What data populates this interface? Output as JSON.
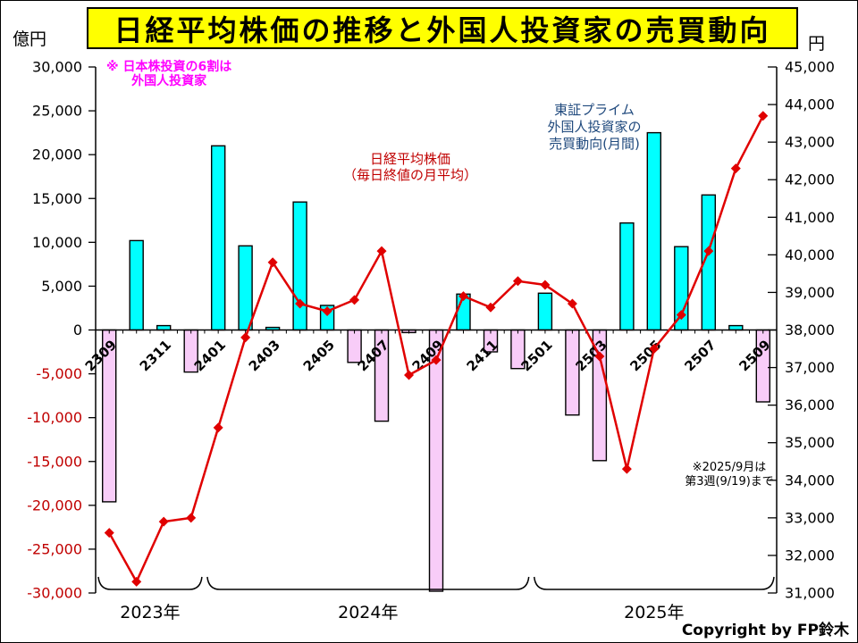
{
  "header": {
    "title": "日経平均株価の推移と外国人投資家の売買動向",
    "left_unit": "億円",
    "right_unit": "円"
  },
  "annotations": {
    "domestic_note": {
      "line1": "※ 日本株投資の6割は",
      "line2": "外国人投資家"
    },
    "nikkei_label": {
      "line1": "日経平均株価",
      "line2": "（毎日終値の月平均）"
    },
    "foreign_label": {
      "line1": "東証プライム",
      "line2": "外国人投資家の",
      "line3": "売買動向(月間)"
    },
    "data_note": {
      "line1": "※2025/9月は",
      "line2": "第3週(9/19)まで"
    }
  },
  "footer": {
    "copyright": "Copyright by FP鈴木"
  },
  "chart_data": {
    "type": "bar+line combo",
    "categories": [
      "2309",
      "2310",
      "2311",
      "2312",
      "2401",
      "2402",
      "2403",
      "2404",
      "2405",
      "2406",
      "2407",
      "2408",
      "2409",
      "2410",
      "2411",
      "2412",
      "2501",
      "2502",
      "2503",
      "2504",
      "2505",
      "2506",
      "2507",
      "2508",
      "2509"
    ],
    "series": [
      {
        "name": "東証プライム外国人投資家の売買動向(月間)",
        "type": "bar",
        "axis": "left",
        "unit": "億円",
        "values": [
          -19600,
          10200,
          500,
          -4800,
          21000,
          9600,
          300,
          14600,
          2800,
          -3700,
          -10400,
          -300,
          -29800,
          4100,
          -2500,
          -4400,
          4200,
          -9700,
          -14900,
          12200,
          22500,
          9500,
          15400,
          500,
          -8200
        ]
      },
      {
        "name": "日経平均株価（毎日終値の月平均）",
        "type": "line",
        "axis": "right",
        "unit": "円",
        "values": [
          32600,
          31300,
          32900,
          33000,
          35400,
          37800,
          39800,
          38700,
          38500,
          38800,
          40100,
          36800,
          37200,
          38900,
          38600,
          39300,
          39200,
          38700,
          37300,
          34300,
          37500,
          38400,
          40100,
          42300,
          43700
        ]
      }
    ],
    "left_axis": {
      "label": "億円",
      "min": -30000,
      "max": 30000,
      "step": 5000,
      "ticks": [
        "30,000",
        "25,000",
        "20,000",
        "15,000",
        "10,000",
        "5,000",
        "0",
        "-5,000",
        "-10,000",
        "-15,000",
        "-20,000",
        "-25,000",
        "-30,000"
      ]
    },
    "right_axis": {
      "label": "円",
      "min": 31000,
      "max": 45000,
      "step": 1000,
      "ticks": [
        "45,000",
        "44,000",
        "43,000",
        "42,000",
        "41,000",
        "40,000",
        "39,000",
        "38,000",
        "37,000",
        "36,000",
        "35,000",
        "34,000",
        "33,000",
        "32,000",
        "31,000"
      ]
    },
    "x_tick_labels": [
      "2309",
      "2311",
      "2401",
      "2403",
      "2405",
      "2407",
      "2409",
      "2411",
      "2501",
      "2503",
      "2505",
      "2507",
      "2509"
    ],
    "year_groups": [
      {
        "label": "2023年",
        "from": 0,
        "to": 3
      },
      {
        "label": "2024年",
        "from": 4,
        "to": 15
      },
      {
        "label": "2025年",
        "from": 16,
        "to": 24
      }
    ],
    "grid": false,
    "legend": "none (text annotations on plot)",
    "colors": {
      "bar_positive": "#00FFFF",
      "bar_negative": "#F8CCF8",
      "bar_border": "#000000",
      "line": "#E00000",
      "negative_tick_label": "#C00000",
      "tick_label": "#000000",
      "title_bg": "#FFFF00"
    }
  }
}
